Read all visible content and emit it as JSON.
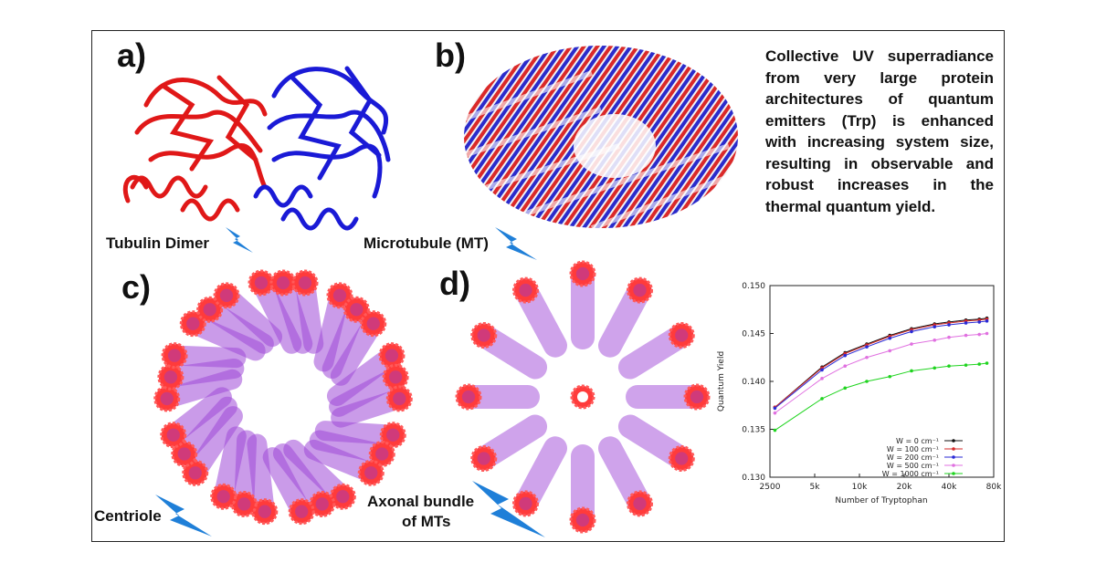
{
  "panels": {
    "a": {
      "label": "a)",
      "caption": "Tubulin Dimer"
    },
    "b": {
      "label": "b)",
      "caption": "Microtubule (MT)"
    },
    "c": {
      "label": "c)",
      "caption": "Centriole"
    },
    "d": {
      "label": "d)",
      "caption_line1": "Axonal bundle",
      "caption_line2": "of MTs"
    }
  },
  "blurb_lines": [
    "Collective UV superradiance",
    "from very large protein",
    "architectures of quantum",
    "emitters (Trp) is enhanced",
    "with increasing system size,",
    "resulting in observable and",
    "robust increases in the",
    "thermal quantum yield."
  ],
  "colors": {
    "alpha_tubulin": "#e01818",
    "beta_tubulin": "#1a1ad6",
    "tube": "#9b3fd0",
    "ring": "#ff3b3b",
    "bolt": "#1f7fd8"
  },
  "chart_data": {
    "type": "line",
    "xscale": "log",
    "xlabel": "Number of Tryptophan",
    "ylabel": "Quantum Yield",
    "xticks": [
      2500,
      5000,
      10000,
      20000,
      40000,
      80000
    ],
    "xtick_labels": [
      "2500",
      "5k",
      "10k",
      "20k",
      "40k",
      "80k"
    ],
    "xlim": [
      2500,
      80000
    ],
    "yticks": [
      0.13,
      0.135,
      0.14,
      0.145,
      0.15
    ],
    "ytick_labels": [
      "0.130",
      "0.135",
      "0.140",
      "0.145",
      "0.150"
    ],
    "ylim": [
      0.13,
      0.15
    ],
    "legend_position": "bottom-right",
    "x": [
      2700,
      5600,
      8000,
      11200,
      16000,
      22400,
      32000,
      40000,
      52000,
      64000,
      72000
    ],
    "series": [
      {
        "name": "W =    0 cm⁻¹",
        "color": "#111111",
        "values": [
          0.1373,
          0.1415,
          0.143,
          0.1439,
          0.1448,
          0.1455,
          0.146,
          0.1462,
          0.1464,
          0.1465,
          0.1466
        ]
      },
      {
        "name": "W =  100 cm⁻¹",
        "color": "#d62a2a",
        "values": [
          0.1373,
          0.1414,
          0.1429,
          0.1438,
          0.1447,
          0.1454,
          0.1459,
          0.1461,
          0.1463,
          0.1464,
          0.1465
        ]
      },
      {
        "name": "W =  200 cm⁻¹",
        "color": "#2a2ad6",
        "values": [
          0.1372,
          0.1412,
          0.1427,
          0.1436,
          0.1445,
          0.1452,
          0.1457,
          0.1459,
          0.1461,
          0.1462,
          0.1463
        ]
      },
      {
        "name": "W =  500 cm⁻¹",
        "color": "#e070e0",
        "values": [
          0.1367,
          0.1403,
          0.1416,
          0.1425,
          0.1432,
          0.1439,
          0.1443,
          0.1446,
          0.1448,
          0.1449,
          0.145
        ]
      },
      {
        "name": "W = 1000 cm⁻¹",
        "color": "#1fd41f",
        "values": [
          0.1349,
          0.1382,
          0.1393,
          0.14,
          0.1405,
          0.1411,
          0.1414,
          0.1416,
          0.1417,
          0.1418,
          0.1419
        ]
      }
    ]
  }
}
